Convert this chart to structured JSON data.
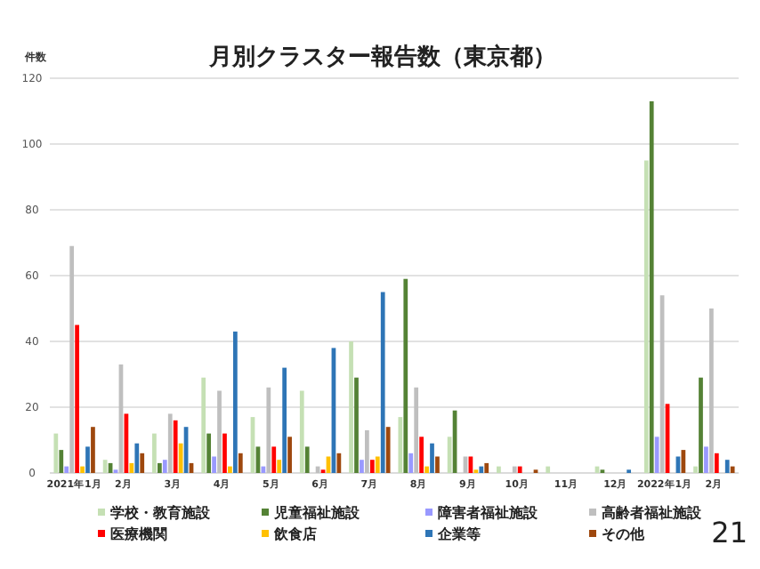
{
  "chart_data": {
    "type": "bar",
    "title": "月別クラスター報告数（東京都）",
    "ylabel": "件数",
    "categories": [
      "2021年1月",
      "2月",
      "3月",
      "4月",
      "5月",
      "6月",
      "7月",
      "8月",
      "9月",
      "10月",
      "11月",
      "12月",
      "2022年1月",
      "2月"
    ],
    "series": [
      {
        "name": "学校・教育施設",
        "color": "#c5e0b4",
        "values": [
          12,
          4,
          12,
          29,
          17,
          25,
          40,
          17,
          11,
          2,
          2,
          2,
          95,
          2
        ]
      },
      {
        "name": "児童福祉施設",
        "color": "#548235",
        "values": [
          7,
          3,
          3,
          12,
          8,
          8,
          29,
          59,
          19,
          0,
          0,
          1,
          113,
          29
        ]
      },
      {
        "name": "障害者福祉施設",
        "color": "#9999ff",
        "values": [
          2,
          1,
          4,
          5,
          2,
          0,
          4,
          6,
          0,
          0,
          0,
          0,
          11,
          8
        ]
      },
      {
        "name": "高齢者福祉施設",
        "color": "#bfbfbf",
        "values": [
          69,
          33,
          18,
          25,
          26,
          2,
          13,
          26,
          5,
          2,
          0,
          0,
          54,
          50
        ]
      },
      {
        "name": "医療機関",
        "color": "#ff0000",
        "values": [
          45,
          18,
          16,
          12,
          8,
          1,
          4,
          11,
          5,
          2,
          0,
          0,
          21,
          6
        ]
      },
      {
        "name": "飲食店",
        "color": "#ffc000",
        "values": [
          2,
          3,
          9,
          2,
          4,
          5,
          5,
          2,
          1,
          0,
          0,
          0,
          0,
          0
        ]
      },
      {
        "name": "企業等",
        "color": "#2e75b6",
        "values": [
          8,
          9,
          14,
          43,
          32,
          38,
          55,
          9,
          2,
          0,
          0,
          1,
          5,
          4
        ]
      },
      {
        "name": "その他",
        "color": "#9e480e",
        "values": [
          14,
          6,
          3,
          6,
          11,
          6,
          14,
          5,
          3,
          1,
          0,
          0,
          7,
          2
        ]
      }
    ],
    "ylim": [
      0,
      120
    ],
    "yticks": [
      0,
      20,
      40,
      60,
      80,
      100,
      120
    ],
    "grid": "y",
    "legend": "bottom",
    "annotations": [
      "21"
    ]
  }
}
